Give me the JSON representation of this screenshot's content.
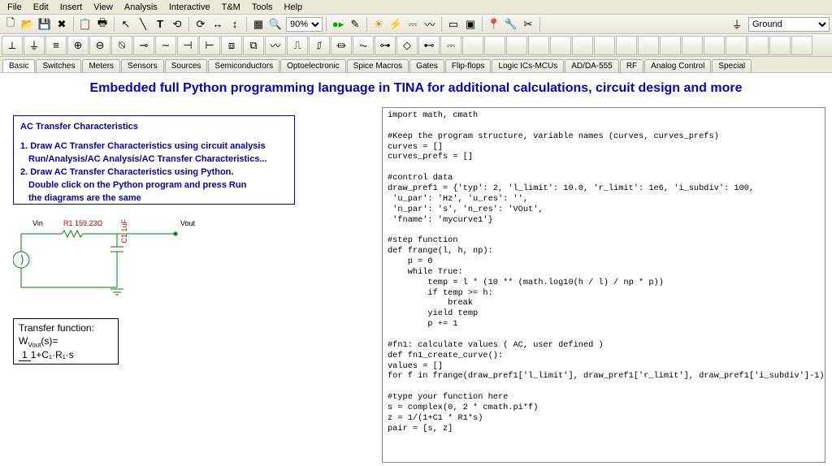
{
  "menu": [
    "File",
    "Edit",
    "Insert",
    "View",
    "Analysis",
    "Interactive",
    "T&M",
    "Tools",
    "Help"
  ],
  "zoom": "90%",
  "ground_label": "Ground",
  "tabs": [
    "Basic",
    "Switches",
    "Meters",
    "Sensors",
    "Sources",
    "Semiconductors",
    "Optoelectronic",
    "Spice Macros",
    "Gates",
    "Flip-flops",
    "Logic ICs-MCUs",
    "AD/DA-555",
    "RF",
    "Analog Control",
    "Special"
  ],
  "headline": "Embedded full Python programming language in TINA for additional calculations, circuit design and more",
  "bluebox": {
    "title": "AC Transfer Characteristics",
    "l1": "1. Draw AC Transfer Characteristics using circuit analysis",
    "l2": "Run/Analysis/AC Analysis/AC Transfer Characteristics...",
    "l3": "2. Draw AC Transfer Characteristics using Python.",
    "l4": "Double click on the Python program and press Run",
    "l5": "the diagrams are the same"
  },
  "circuit": {
    "r_label": "R1 159.23Ω",
    "c_label": "C1 1uF",
    "vin": "Vin",
    "vout": "Vout"
  },
  "tf": {
    "title": "Transfer function:",
    "lhs": "W",
    "sub": "Vout",
    "arg": "(s)=",
    "num": "1",
    "den": "1+C₁·R₁·s"
  },
  "code": "import math, cmath\n\n#Keep the program structure, variable names (curves, curves_prefs)\ncurves = []\ncurves_prefs = []\n\n#control data\ndraw_pref1 = {'typ': 2, 'l_limit': 10.0, 'r_limit': 1e6, 'i_subdiv': 100,\n 'u_par': 'Hz', 'u_res': '',\n 'n_par': 's', 'n_res': 'VOut',\n 'fname': 'mycurve1'}\n\n#step function\ndef frange(l, h, np):\n    p = 0\n    while True:\n        temp = l * (10 ** (math.log10(h / l) / np * p))\n        if temp >= h:\n            break\n        yield temp\n        p += 1\n\n#fn1: calculate values ( AC, user defined )\ndef fn1_create_curve():\nvalues = []\nfor f in frange(draw_pref1['l_limit'], draw_pref1['r_limit'], draw_pref1['i_subdiv']-1):\n\n#type your function here\ns = complex(0, 2 * cmath.pi*f)\nz = 1/(1+C1 * R1*s)\npair = [s, z]"
}
